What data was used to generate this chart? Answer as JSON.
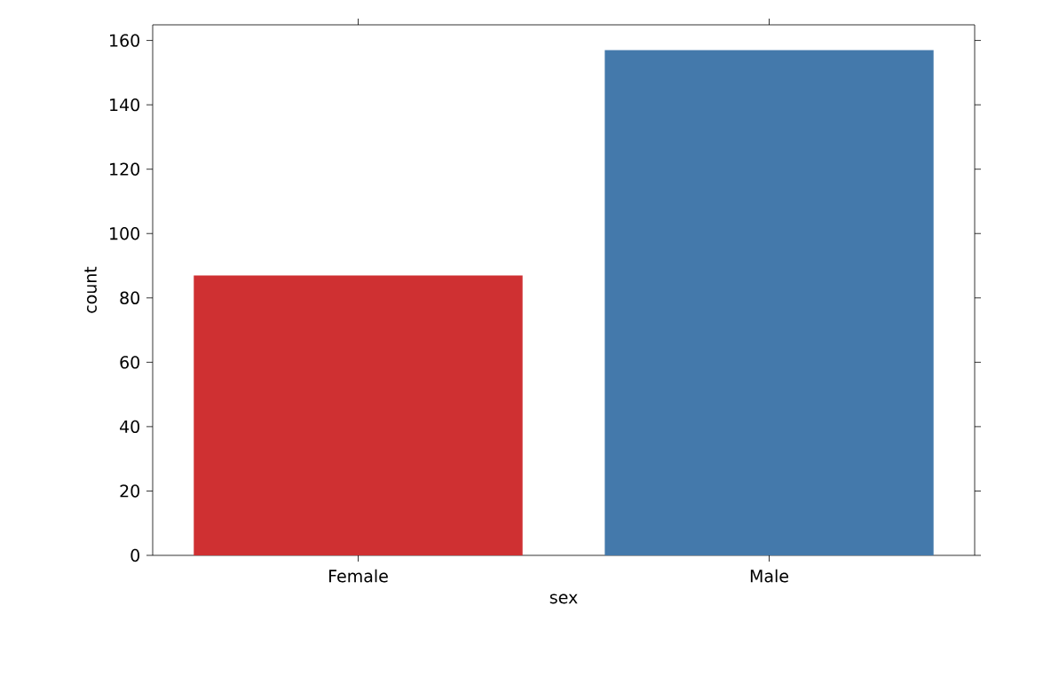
{
  "chart_data": {
    "type": "bar",
    "xlabel": "sex",
    "ylabel": "count",
    "categories": [
      "Female",
      "Male"
    ],
    "values": [
      87,
      157
    ],
    "colors": [
      "#cf3032",
      "#4479ab"
    ],
    "ylim": [
      0,
      164.85
    ],
    "yticks": [
      0,
      20,
      40,
      60,
      80,
      100,
      120,
      140,
      160
    ]
  }
}
